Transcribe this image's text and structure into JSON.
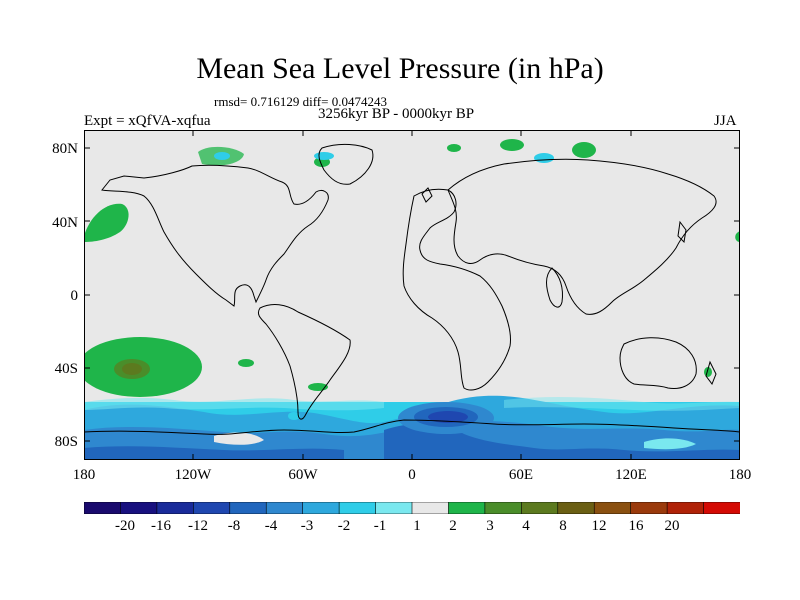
{
  "title": "Mean Sea Level Pressure (in hPa)",
  "stats": "rmsd= 0.716129 diff= 0.0474243",
  "experiment": "Expt = xQfVA-xqfua",
  "period": "3256kyr BP - 0000kyr BP",
  "season": "JJA",
  "axes": {
    "y_ticks": [
      "80N",
      "40N",
      "0",
      "40S",
      "80S"
    ],
    "x_ticks": [
      "180",
      "120W",
      "60W",
      "0",
      "60E",
      "120E",
      "180"
    ]
  },
  "colorbar": {
    "labels": [
      "-20",
      "-16",
      "-12",
      "-8",
      "-4",
      "-3",
      "-2",
      "-1",
      "1",
      "2",
      "3",
      "4",
      "8",
      "12",
      "16",
      "20"
    ],
    "colors": [
      "#1a0a6e",
      "#18107f",
      "#1a2b9a",
      "#1f47b0",
      "#2166bd",
      "#2f88cf",
      "#2ea8dd",
      "#2fcde8",
      "#7ae8ef",
      "#e8e8e8",
      "#1fb54a",
      "#4a8d2a",
      "#5c7a1f",
      "#6b5f14",
      "#8a5010",
      "#9a3a0c",
      "#b02208",
      "#d40a04"
    ]
  },
  "map_colors": {
    "background": "#e8e8e8",
    "coast": "#000000"
  }
}
